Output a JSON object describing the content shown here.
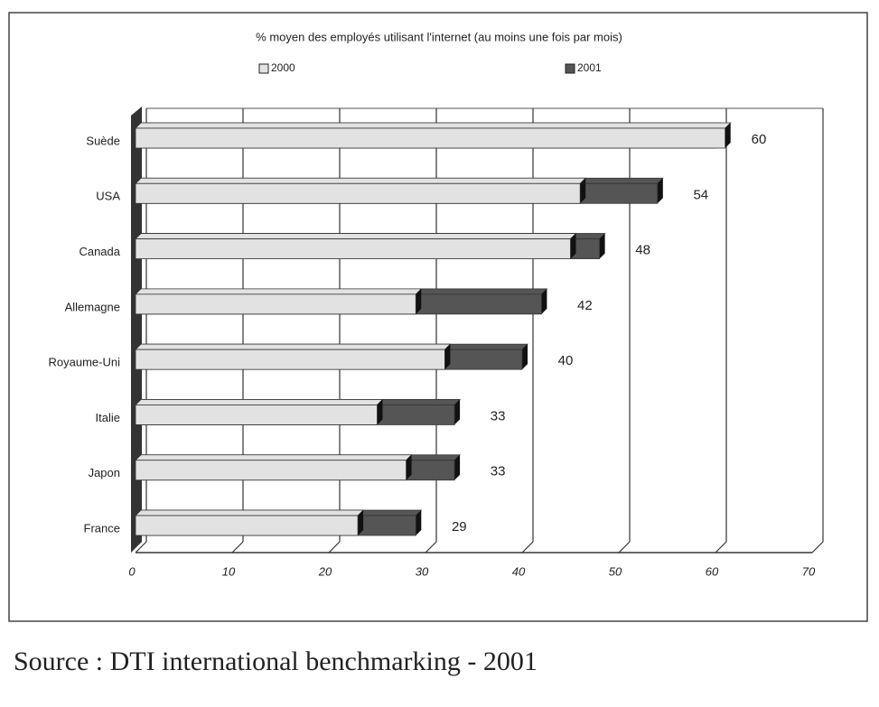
{
  "chart_data": {
    "type": "bar",
    "orientation": "horizontal",
    "title": "% moyen des employés utilisant l'internet (au moins une fois par mois)",
    "categories": [
      "Suède",
      "USA",
      "Canada",
      "Allemagne",
      "Royaume-Uni",
      "Italie",
      "Japon",
      "France"
    ],
    "series": [
      {
        "name": "2000",
        "color": "#e2e2e2",
        "values": [
          61,
          46,
          45,
          29,
          32,
          25,
          28,
          23
        ]
      },
      {
        "name": "2001",
        "color": "#555555",
        "values": [
          60,
          54,
          48,
          42,
          40,
          33,
          33,
          29
        ]
      }
    ],
    "xlim": [
      0,
      70
    ],
    "xticks": [
      0,
      10,
      20,
      30,
      40,
      50,
      60,
      70
    ],
    "grid": true
  },
  "source": "Source : DTI international benchmarking  - 2001"
}
